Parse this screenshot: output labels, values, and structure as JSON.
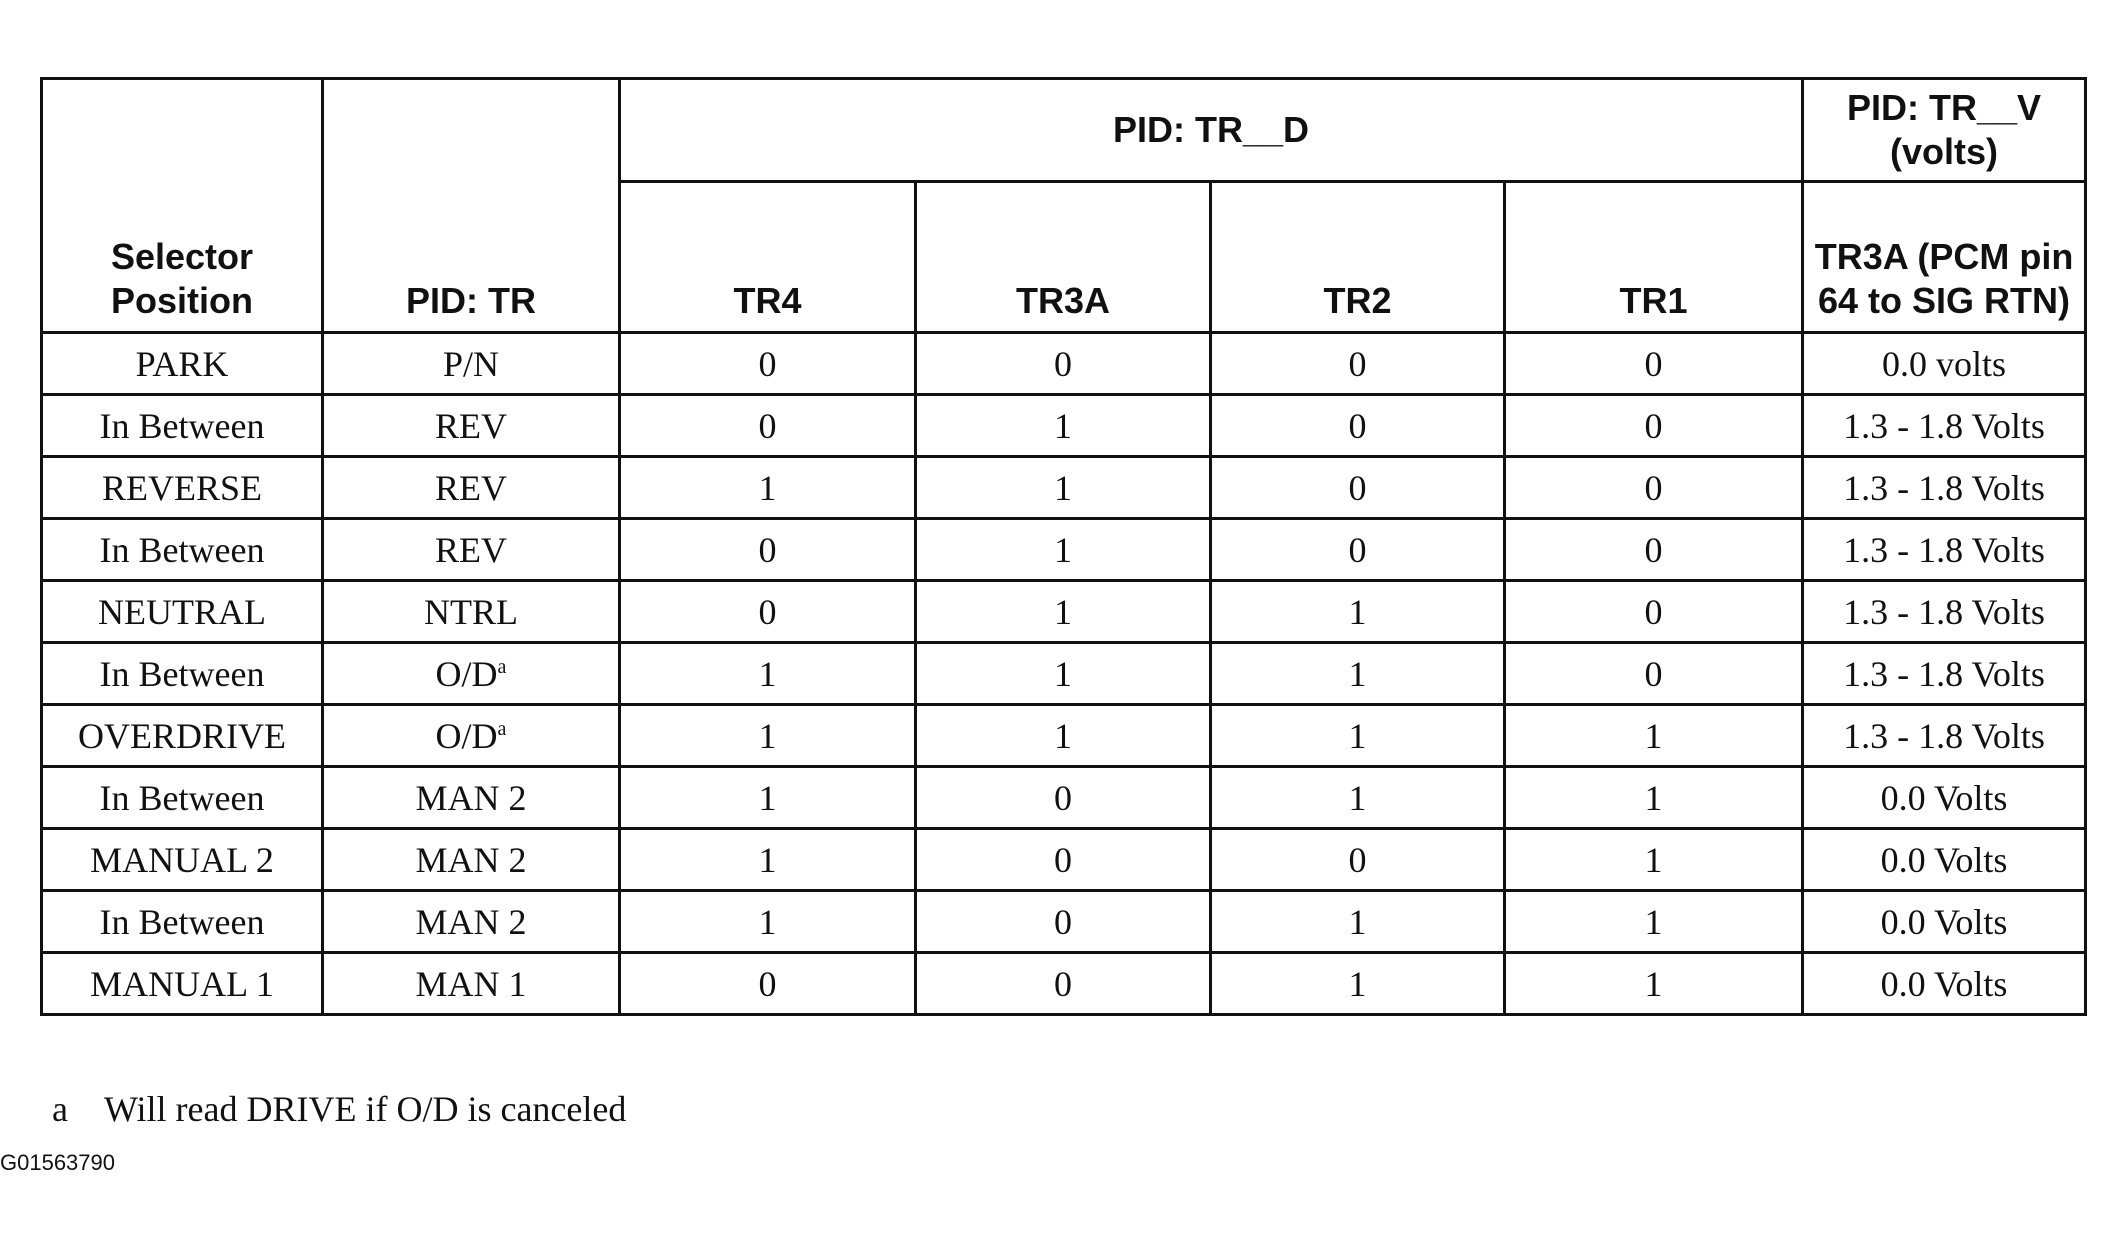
{
  "table": {
    "header": {
      "selector_position": "Selector Position",
      "pid_tr": "PID: TR",
      "pid_tr_d": "PID: TR__D",
      "pid_tr_v": "PID: TR__V (volts)",
      "sub_columns": [
        "TR4",
        "TR3A",
        "TR2",
        "TR1",
        "TR3A (PCM pin 64 to SIG RTN)"
      ]
    },
    "rows": [
      [
        "PARK",
        "P/N",
        0,
        0,
        0,
        0,
        "0.0 volts"
      ],
      [
        "In Between",
        "REV",
        0,
        1,
        0,
        0,
        "1.3 - 1.8 Volts"
      ],
      [
        "REVERSE",
        "REV",
        1,
        1,
        0,
        0,
        "1.3 - 1.8 Volts"
      ],
      [
        "In Between",
        "REV",
        0,
        1,
        0,
        0,
        "1.3 - 1.8 Volts"
      ],
      [
        "NEUTRAL",
        "NTRL",
        0,
        1,
        1,
        0,
        "1.3 - 1.8 Volts"
      ],
      [
        "In Between",
        {
          "text": "O/D",
          "sup": "a"
        },
        1,
        1,
        1,
        0,
        "1.3 - 1.8 Volts"
      ],
      [
        "OVERDRIVE",
        {
          "text": "O/D",
          "sup": "a"
        },
        1,
        1,
        1,
        1,
        "1.3 - 1.8 Volts"
      ],
      [
        "In Between",
        "MAN 2",
        1,
        0,
        1,
        1,
        "0.0 Volts"
      ],
      [
        "MANUAL 2",
        "MAN 2",
        1,
        0,
        0,
        1,
        "0.0 Volts"
      ],
      [
        "In Between",
        "MAN 2",
        1,
        0,
        1,
        1,
        "0.0 Volts"
      ],
      [
        "MANUAL 1",
        "MAN 1",
        0,
        0,
        1,
        1,
        "0.0 Volts"
      ]
    ]
  },
  "footnote": {
    "marker": "a",
    "text": "Will read DRIVE if O/D is canceled"
  },
  "figure_id": "G01563790"
}
